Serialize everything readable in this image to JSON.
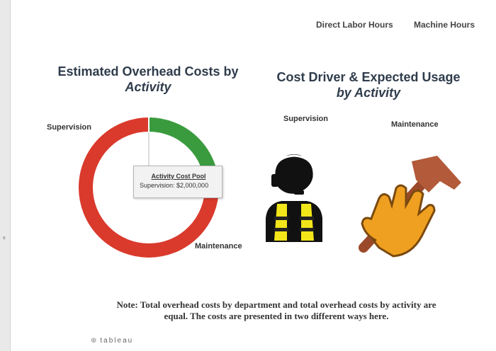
{
  "tabs": [
    {
      "label": "Direct Labor Hours"
    },
    {
      "label": "Machine Hours"
    }
  ],
  "left_chart": {
    "title_line1": "Estimated Overhead Costs by",
    "title_line2": "Activity",
    "labels": {
      "supervision": "Supervision",
      "maintenance": "Maintenance"
    },
    "tooltip": {
      "title": "Activity Cost Pool",
      "text": "Supervision: $2,000,000"
    }
  },
  "chart_data": {
    "type": "pie",
    "slices": [
      {
        "label": "Supervision",
        "fraction": 0.25,
        "color": "#3a9b3e"
      },
      {
        "label": "Maintenance",
        "fraction": 0.75,
        "color": "#d93a2c"
      }
    ]
  },
  "right_panel": {
    "title_line1": "Cost Driver & Expected Usage",
    "title_line2": "by Activity",
    "supervision_label": "Supervision",
    "maintenance_label": "Maintenance",
    "icons": [
      "supervisor-icon",
      "hammer-hand-icon"
    ]
  },
  "note": {
    "line1": "Note: Total overhead costs by department and total overhead costs by activity are",
    "line2": "equal. The costs are presented in two different ways here."
  },
  "footer": {
    "brand": "tableau"
  }
}
